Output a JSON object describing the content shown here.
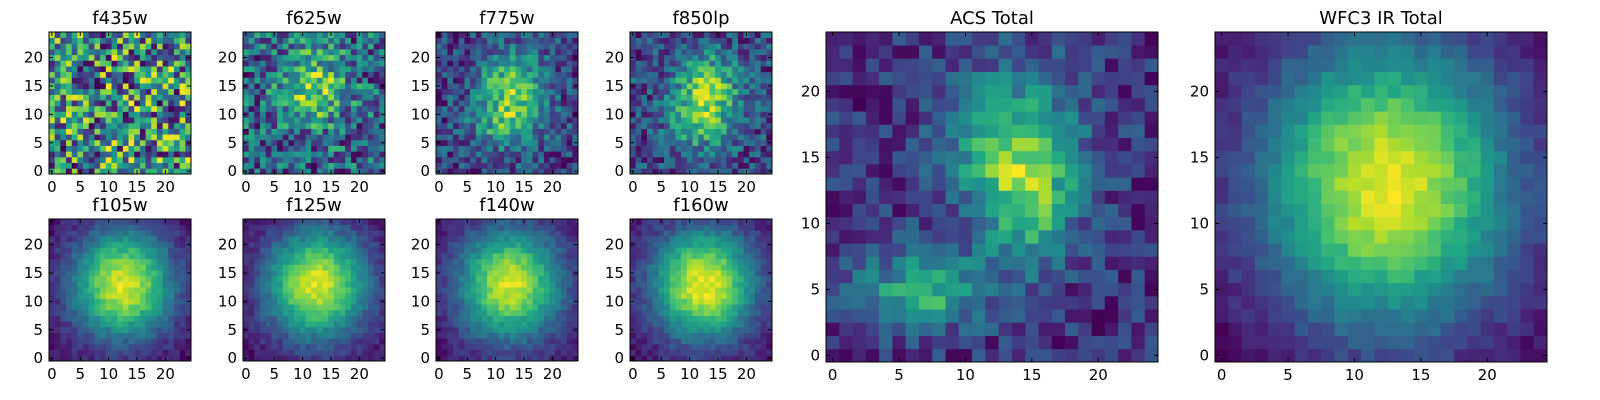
{
  "chart_data": {
    "type": "heatmap",
    "colormap": "viridis",
    "grid_size": 25,
    "panels": [
      {
        "title": "f435w",
        "pattern": "noise",
        "x_ticks": [
          0,
          5,
          10,
          15,
          20
        ],
        "y_ticks": [
          0,
          5,
          10,
          15,
          20
        ],
        "xlim": [
          0,
          25
        ],
        "ylim": [
          0,
          25
        ]
      },
      {
        "title": "f625w",
        "pattern": "noisy-blob",
        "x_ticks": [
          0,
          5,
          10,
          15,
          20
        ],
        "y_ticks": [
          0,
          5,
          10,
          15,
          20
        ],
        "xlim": [
          0,
          25
        ],
        "ylim": [
          0,
          25
        ]
      },
      {
        "title": "f775w",
        "pattern": "blob",
        "x_ticks": [
          0,
          5,
          10,
          15,
          20
        ],
        "y_ticks": [
          0,
          5,
          10,
          15,
          20
        ],
        "xlim": [
          0,
          25
        ],
        "ylim": [
          0,
          25
        ]
      },
      {
        "title": "f850lp",
        "pattern": "blob",
        "x_ticks": [
          0,
          5,
          10,
          15,
          20
        ],
        "y_ticks": [
          0,
          5,
          10,
          15,
          20
        ],
        "xlim": [
          0,
          25
        ],
        "ylim": [
          0,
          25
        ]
      },
      {
        "title": "f105w",
        "pattern": "smooth-blob",
        "x_ticks": [
          0,
          5,
          10,
          15,
          20
        ],
        "y_ticks": [
          0,
          5,
          10,
          15,
          20
        ],
        "xlim": [
          0,
          25
        ],
        "ylim": [
          0,
          25
        ]
      },
      {
        "title": "f125w",
        "pattern": "smooth-blob",
        "x_ticks": [
          0,
          5,
          10,
          15,
          20
        ],
        "y_ticks": [
          0,
          5,
          10,
          15,
          20
        ],
        "xlim": [
          0,
          25
        ],
        "ylim": [
          0,
          25
        ]
      },
      {
        "title": "f140w",
        "pattern": "smooth-blob",
        "x_ticks": [
          0,
          5,
          10,
          15,
          20
        ],
        "y_ticks": [
          0,
          5,
          10,
          15,
          20
        ],
        "xlim": [
          0,
          25
        ],
        "ylim": [
          0,
          25
        ]
      },
      {
        "title": "f160w",
        "pattern": "smooth-blob",
        "x_ticks": [
          0,
          5,
          10,
          15,
          20
        ],
        "y_ticks": [
          0,
          5,
          10,
          15,
          20
        ],
        "xlim": [
          0,
          25
        ],
        "ylim": [
          0,
          25
        ]
      },
      {
        "title": "ACS Total",
        "pattern": "double-blob",
        "x_ticks": [
          0,
          5,
          10,
          15,
          20
        ],
        "y_ticks": [
          0,
          5,
          10,
          15,
          20
        ],
        "xlim": [
          0,
          25
        ],
        "ylim": [
          0,
          25
        ]
      },
      {
        "title": "WFC3 IR Total",
        "pattern": "large-smooth-blob",
        "x_ticks": [
          0,
          5,
          10,
          15,
          20
        ],
        "y_ticks": [
          0,
          5,
          10,
          15,
          20
        ],
        "xlim": [
          0,
          25
        ],
        "ylim": [
          0,
          25
        ]
      }
    ]
  }
}
